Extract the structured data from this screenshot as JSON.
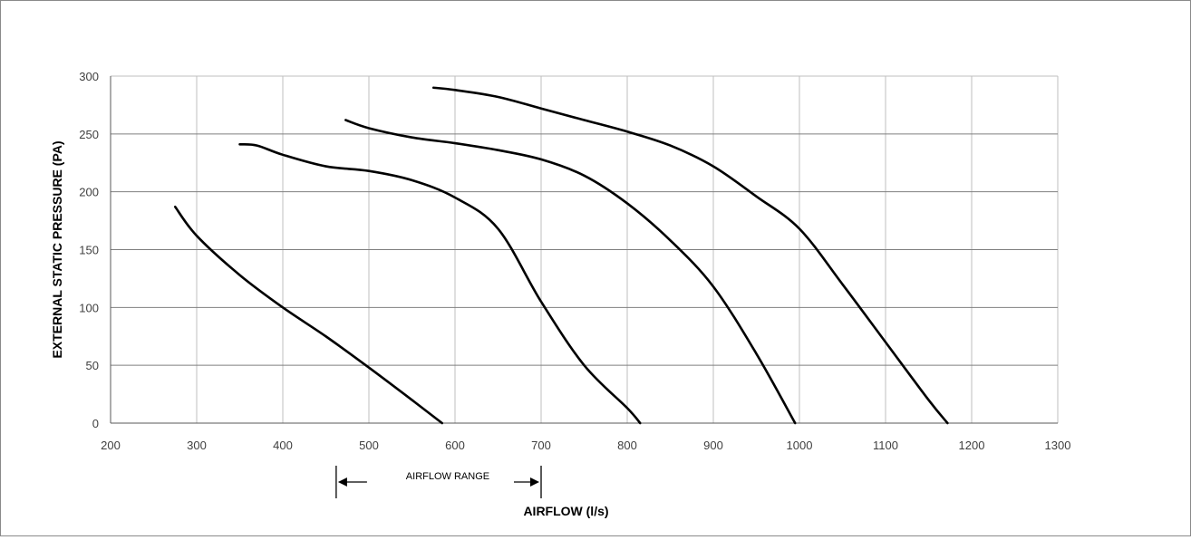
{
  "chart_data": {
    "type": "line",
    "xlabel": "AIRFLOW (l/s)",
    "ylabel": "EXTERNAL STATIC PRESSURE (PA)",
    "xlim": [
      200,
      1300
    ],
    "ylim": [
      0,
      300
    ],
    "x_ticks": [
      200,
      300,
      400,
      500,
      600,
      700,
      800,
      900,
      1000,
      1100,
      1200,
      1300
    ],
    "y_ticks": [
      0,
      50,
      100,
      150,
      200,
      250,
      300
    ],
    "grid": true,
    "line_color": "#000000",
    "grid_color": "#bfbfbf",
    "series": [
      {
        "values": [
          [
            275,
            187
          ],
          [
            300,
            162
          ],
          [
            350,
            128
          ],
          [
            400,
            100
          ],
          [
            450,
            75
          ],
          [
            500,
            48
          ],
          [
            550,
            20
          ],
          [
            585,
            0
          ]
        ]
      },
      {
        "values": [
          [
            350,
            241
          ],
          [
            370,
            240
          ],
          [
            400,
            232
          ],
          [
            450,
            222
          ],
          [
            500,
            218
          ],
          [
            550,
            210
          ],
          [
            600,
            195
          ],
          [
            650,
            168
          ],
          [
            700,
            105
          ],
          [
            750,
            50
          ],
          [
            800,
            13
          ],
          [
            815,
            0
          ]
        ]
      },
      {
        "values": [
          [
            473,
            262
          ],
          [
            500,
            255
          ],
          [
            550,
            247
          ],
          [
            600,
            242
          ],
          [
            650,
            236
          ],
          [
            700,
            228
          ],
          [
            750,
            214
          ],
          [
            800,
            190
          ],
          [
            850,
            158
          ],
          [
            900,
            118
          ],
          [
            950,
            60
          ],
          [
            995,
            0
          ]
        ]
      },
      {
        "values": [
          [
            575,
            290
          ],
          [
            600,
            288
          ],
          [
            650,
            282
          ],
          [
            700,
            272
          ],
          [
            750,
            262
          ],
          [
            800,
            252
          ],
          [
            850,
            240
          ],
          [
            900,
            222
          ],
          [
            950,
            196
          ],
          [
            1000,
            168
          ],
          [
            1050,
            120
          ],
          [
            1100,
            70
          ],
          [
            1150,
            20
          ],
          [
            1172,
            0
          ]
        ]
      }
    ],
    "annotation": {
      "label": "AIRFLOW RANGE",
      "x_start": 462,
      "x_end": 700
    }
  }
}
